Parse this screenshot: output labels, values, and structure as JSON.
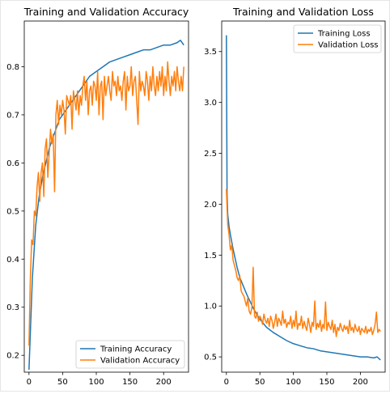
{
  "chart_data": [
    {
      "type": "line",
      "title": "Training and Validation Accuracy",
      "xlabel": "",
      "ylabel": "",
      "xlim": [
        -7,
        237
      ],
      "ylim": [
        0.165,
        0.895
      ],
      "xticks": [
        0,
        50,
        100,
        150,
        200
      ],
      "yticks": [
        0.2,
        0.3,
        0.4,
        0.5,
        0.6,
        0.7,
        0.8
      ],
      "tick_labels_x": [
        "0",
        "50",
        "100",
        "150",
        "200"
      ],
      "tick_labels_y": [
        "0.2",
        "0.3",
        "0.4",
        "0.5",
        "0.6",
        "0.7",
        "0.8"
      ],
      "grid": false,
      "legend": "lower-right",
      "series": [
        {
          "name": "Training Accuracy",
          "color": "#1f77b4",
          "x": [
            0,
            5,
            10,
            15,
            20,
            25,
            30,
            35,
            40,
            45,
            50,
            55,
            60,
            65,
            70,
            75,
            80,
            90,
            100,
            110,
            120,
            130,
            140,
            150,
            160,
            170,
            180,
            190,
            200,
            210,
            220,
            225,
            230
          ],
          "y": [
            0.17,
            0.36,
            0.47,
            0.53,
            0.57,
            0.6,
            0.63,
            0.65,
            0.67,
            0.69,
            0.7,
            0.71,
            0.72,
            0.73,
            0.74,
            0.75,
            0.76,
            0.78,
            0.79,
            0.8,
            0.81,
            0.815,
            0.82,
            0.825,
            0.83,
            0.835,
            0.835,
            0.84,
            0.845,
            0.845,
            0.85,
            0.855,
            0.845
          ]
        },
        {
          "name": "Validation Accuracy",
          "color": "#ff7f0e",
          "x": [
            0,
            2,
            4,
            6,
            8,
            10,
            12,
            14,
            16,
            18,
            20,
            22,
            24,
            26,
            28,
            30,
            32,
            34,
            36,
            38,
            40,
            42,
            44,
            46,
            48,
            50,
            52,
            54,
            56,
            58,
            60,
            62,
            64,
            66,
            68,
            70,
            72,
            74,
            76,
            78,
            80,
            82,
            84,
            86,
            88,
            90,
            92,
            94,
            96,
            98,
            100,
            102,
            104,
            106,
            108,
            110,
            112,
            114,
            116,
            118,
            120,
            122,
            124,
            126,
            128,
            130,
            132,
            134,
            136,
            138,
            140,
            142,
            144,
            146,
            148,
            150,
            152,
            154,
            156,
            158,
            160,
            162,
            164,
            166,
            168,
            170,
            172,
            174,
            176,
            178,
            180,
            182,
            184,
            186,
            188,
            190,
            192,
            194,
            196,
            198,
            200,
            202,
            204,
            206,
            208,
            210,
            212,
            214,
            216,
            218,
            220,
            222,
            224,
            226,
            228,
            230
          ],
          "y": [
            0.22,
            0.36,
            0.44,
            0.43,
            0.5,
            0.49,
            0.55,
            0.58,
            0.52,
            0.58,
            0.6,
            0.53,
            0.63,
            0.65,
            0.57,
            0.62,
            0.67,
            0.64,
            0.66,
            0.54,
            0.7,
            0.73,
            0.68,
            0.72,
            0.7,
            0.73,
            0.71,
            0.66,
            0.74,
            0.73,
            0.72,
            0.74,
            0.67,
            0.75,
            0.73,
            0.71,
            0.75,
            0.7,
            0.74,
            0.72,
            0.76,
            0.78,
            0.73,
            0.77,
            0.7,
            0.75,
            0.76,
            0.72,
            0.77,
            0.76,
            0.73,
            0.79,
            0.7,
            0.76,
            0.77,
            0.69,
            0.78,
            0.74,
            0.76,
            0.78,
            0.75,
            0.73,
            0.79,
            0.76,
            0.77,
            0.74,
            0.78,
            0.75,
            0.76,
            0.73,
            0.77,
            0.79,
            0.71,
            0.78,
            0.75,
            0.76,
            0.8,
            0.74,
            0.77,
            0.78,
            0.73,
            0.68,
            0.79,
            0.75,
            0.77,
            0.76,
            0.74,
            0.79,
            0.77,
            0.73,
            0.78,
            0.75,
            0.8,
            0.76,
            0.74,
            0.78,
            0.75,
            0.79,
            0.76,
            0.8,
            0.74,
            0.78,
            0.75,
            0.81,
            0.77,
            0.74,
            0.78,
            0.76,
            0.79,
            0.75,
            0.8,
            0.77,
            0.75,
            0.78,
            0.75,
            0.8
          ]
        }
      ]
    },
    {
      "type": "line",
      "title": "Training and Validation Loss",
      "xlabel": "",
      "ylabel": "",
      "xlim": [
        -7,
        237
      ],
      "ylim": [
        0.35,
        3.8
      ],
      "xticks": [
        0,
        50,
        100,
        150,
        200
      ],
      "yticks": [
        0.5,
        1.0,
        1.5,
        2.0,
        2.5,
        3.0,
        3.5
      ],
      "tick_labels_x": [
        "0",
        "50",
        "100",
        "150",
        "200"
      ],
      "tick_labels_y": [
        "0.5",
        "1.0",
        "1.5",
        "2.0",
        "2.5",
        "3.0",
        "3.5"
      ],
      "grid": false,
      "legend": "upper-right",
      "series": [
        {
          "name": "Training Loss",
          "color": "#1f77b4",
          "x": [
            0,
            1,
            2,
            4,
            6,
            8,
            10,
            12,
            14,
            16,
            18,
            20,
            25,
            30,
            35,
            40,
            45,
            50,
            55,
            60,
            70,
            80,
            90,
            100,
            110,
            120,
            130,
            140,
            150,
            160,
            170,
            180,
            190,
            200,
            210,
            220,
            225,
            230
          ],
          "y": [
            3.66,
            2.1,
            1.9,
            1.78,
            1.7,
            1.63,
            1.56,
            1.5,
            1.44,
            1.38,
            1.33,
            1.28,
            1.2,
            1.12,
            1.05,
            0.98,
            0.92,
            0.87,
            0.83,
            0.79,
            0.74,
            0.7,
            0.66,
            0.63,
            0.61,
            0.59,
            0.58,
            0.56,
            0.55,
            0.54,
            0.53,
            0.52,
            0.51,
            0.5,
            0.5,
            0.49,
            0.5,
            0.47
          ]
        },
        {
          "name": "Validation Loss",
          "color": "#ff7f0e",
          "x": [
            0,
            2,
            4,
            6,
            8,
            10,
            12,
            14,
            16,
            18,
            20,
            22,
            24,
            26,
            28,
            30,
            32,
            34,
            36,
            38,
            40,
            42,
            44,
            46,
            48,
            50,
            52,
            54,
            56,
            58,
            60,
            62,
            64,
            66,
            68,
            70,
            72,
            74,
            76,
            78,
            80,
            82,
            84,
            86,
            88,
            90,
            92,
            94,
            96,
            98,
            100,
            102,
            104,
            106,
            108,
            110,
            112,
            114,
            116,
            118,
            120,
            122,
            124,
            126,
            128,
            130,
            132,
            134,
            136,
            138,
            140,
            142,
            144,
            146,
            148,
            150,
            152,
            154,
            156,
            158,
            160,
            162,
            164,
            166,
            168,
            170,
            172,
            174,
            176,
            178,
            180,
            182,
            184,
            186,
            188,
            190,
            192,
            194,
            196,
            198,
            200,
            202,
            204,
            206,
            208,
            210,
            212,
            214,
            216,
            218,
            220,
            222,
            224,
            226,
            228,
            230
          ],
          "y": [
            2.15,
            1.8,
            1.7,
            1.55,
            1.6,
            1.45,
            1.4,
            1.35,
            1.28,
            1.25,
            1.3,
            1.15,
            1.12,
            1.1,
            1.05,
            1.0,
            1.08,
            0.95,
            0.92,
            0.98,
            1.38,
            0.9,
            0.88,
            0.94,
            0.85,
            0.9,
            0.87,
            0.82,
            0.92,
            0.86,
            0.83,
            0.88,
            0.8,
            0.9,
            0.86,
            0.78,
            0.84,
            0.92,
            0.8,
            0.88,
            0.85,
            0.81,
            0.95,
            0.83,
            0.87,
            0.79,
            0.84,
            0.82,
            0.9,
            0.78,
            0.86,
            0.8,
            0.95,
            0.77,
            0.83,
            0.81,
            0.9,
            0.78,
            0.85,
            0.8,
            0.76,
            0.88,
            0.82,
            0.74,
            0.84,
            0.8,
            1.05,
            0.77,
            0.83,
            0.79,
            0.86,
            0.75,
            0.82,
            0.78,
            1.04,
            0.76,
            0.84,
            0.8,
            0.77,
            0.86,
            0.74,
            0.82,
            0.7,
            0.79,
            0.76,
            0.83,
            0.78,
            0.75,
            0.81,
            0.77,
            0.8,
            0.73,
            0.86,
            0.76,
            0.79,
            0.74,
            0.82,
            0.77,
            0.75,
            0.8,
            0.72,
            0.78,
            0.76,
            0.74,
            0.8,
            0.73,
            0.77,
            0.75,
            0.79,
            0.72,
            0.76,
            0.82,
            0.94,
            0.74,
            0.77,
            0.75
          ]
        }
      ]
    }
  ]
}
